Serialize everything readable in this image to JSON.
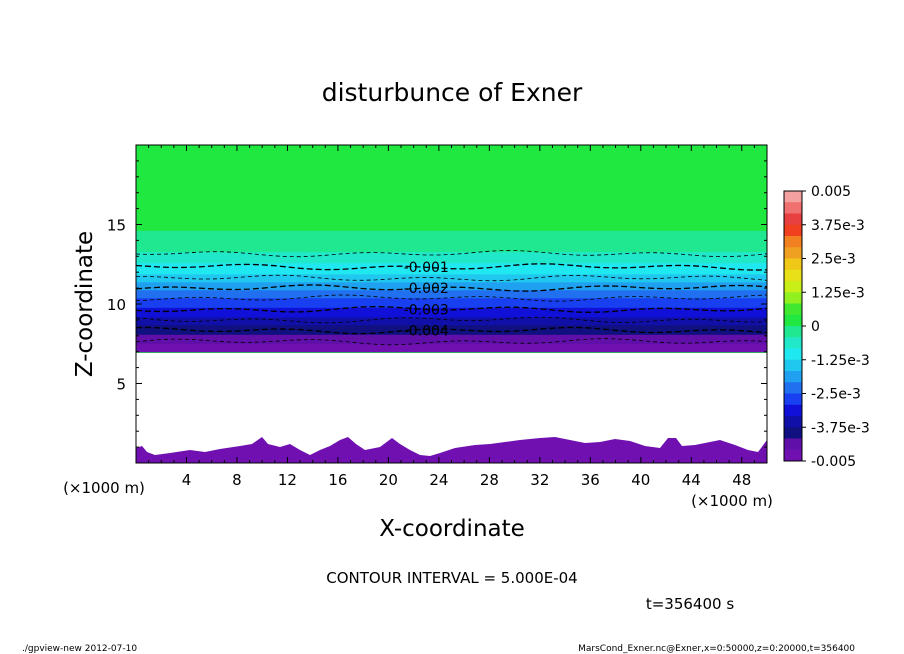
{
  "chart_data": {
    "type": "contour",
    "title": "disturbunce of Exner",
    "xlabel": "X-coordinate",
    "ylabel": "Z-coordinate",
    "x_unit_left": "(×1000 m)",
    "x_unit_right": "(×1000 m)",
    "xlim": [
      0,
      50
    ],
    "ylim": [
      0,
      20
    ],
    "x_ticks": [
      4,
      8,
      12,
      16,
      20,
      24,
      28,
      32,
      36,
      40,
      44,
      48
    ],
    "y_ticks": [
      5,
      10,
      15
    ],
    "contour_labels": [
      {
        "text": "-0.001",
        "value": -0.001
      },
      {
        "text": "-0.002",
        "value": -0.002
      },
      {
        "text": "-0.003",
        "value": -0.003
      },
      {
        "text": "-0.004",
        "value": -0.004
      }
    ],
    "colorbar": {
      "labels": [
        "0.005",
        "3.75e-3",
        "2.5e-3",
        "1.25e-3",
        "0",
        "-1.25e-3",
        "-2.5e-3",
        "-3.75e-3",
        "-0.005"
      ],
      "levels": [
        0.005,
        0.00375,
        0.0025,
        0.00125,
        0,
        -0.00125,
        -0.0025,
        -0.00375,
        -0.005
      ],
      "colors": [
        "#f5a0a0",
        "#f07070",
        "#e84040",
        "#f04020",
        "#f08020",
        "#f0a020",
        "#f0c818",
        "#e8e018",
        "#c8f018",
        "#90f020",
        "#40e830",
        "#20e840",
        "#20e890",
        "#20e8c8",
        "#20e8f0",
        "#20c8f0",
        "#20a0f0",
        "#2070f0",
        "#1840f0",
        "#1010d8",
        "#1010a8",
        "#101080",
        "#6010a8",
        "#7010b0"
      ]
    },
    "profile": {
      "z": [
        0,
        7,
        7.5,
        8,
        8.5,
        9,
        9.5,
        10,
        10.5,
        11,
        11.5,
        12,
        12.5,
        13,
        13.5,
        14,
        20
      ],
      "value": [
        -0.005,
        -0.005,
        -0.0046,
        -0.0042,
        -0.0039,
        -0.0035,
        -0.0031,
        -0.0028,
        -0.0024,
        -0.002,
        -0.0016,
        -0.0012,
        -0.0009,
        -0.0006,
        -0.0003,
        0,
        0
      ]
    },
    "contour_interval_text": "CONTOUR INTERVAL = 5.000E-04",
    "time_text": "t=356400 s",
    "footer_left": "./gpview-new   2012-07-10",
    "footer_right": "MarsCond_Exner.nc@Exner,x=0:50000,z=0:20000,t=356400"
  }
}
